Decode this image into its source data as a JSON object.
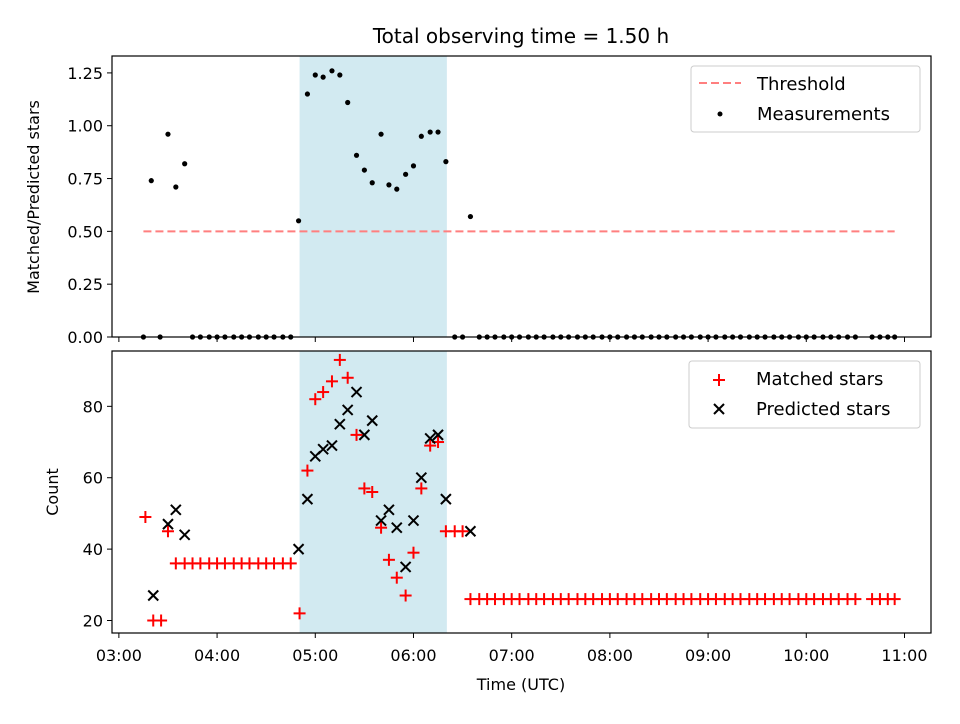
{
  "title": "Total observing time = 1.50 h",
  "colors": {
    "threshold": "#ff7f7f",
    "measurement": "#000000",
    "matched": "#ff0000",
    "predicted": "#000000",
    "span_fill": "#add8e6"
  },
  "top_panel": {
    "ylabel": "Matched/Predicted stars",
    "legend": {
      "threshold": "Threshold",
      "measurements": "Measurements"
    }
  },
  "bottom_panel": {
    "ylabel": "Count",
    "xlabel": "Time (UTC)",
    "legend": {
      "matched": "Matched stars",
      "predicted": "Predicted stars"
    }
  },
  "chart_data": [
    {
      "type": "scatter",
      "panel": "top",
      "title": "Total observing time = 1.50 h",
      "xlabel": "",
      "ylabel": "Matched/Predicted stars",
      "ylim": [
        0,
        1.33
      ],
      "yticks": [
        0.0,
        0.25,
        0.5,
        0.75,
        1.0,
        1.25
      ],
      "ytick_labels": [
        "0.00",
        "0.25",
        "0.50",
        "0.75",
        "1.00",
        "1.25"
      ],
      "x_unit": "hours UTC",
      "xlim": [
        2.93,
        11.27
      ],
      "legend_position": "top-right",
      "shaded_span": [
        4.84,
        6.34
      ],
      "threshold": {
        "name": "Threshold",
        "y": 0.5,
        "x": [
          3.25,
          10.9
        ],
        "style": "dashed"
      },
      "series": [
        {
          "name": "Measurements",
          "x": [
            3.25,
            3.33,
            3.42,
            3.5,
            3.58,
            3.67,
            3.75,
            3.83,
            3.92,
            4.0,
            4.08,
            4.17,
            4.25,
            4.33,
            4.42,
            4.5,
            4.58,
            4.67,
            4.75,
            4.83,
            4.92,
            5.0,
            5.08,
            5.17,
            5.25,
            5.33,
            5.42,
            5.5,
            5.58,
            5.67,
            5.75,
            5.83,
            5.92,
            6.0,
            6.08,
            6.17,
            6.25,
            6.33,
            6.42,
            6.5,
            6.58,
            6.67,
            6.75,
            6.83,
            6.92,
            7.0,
            7.08,
            7.17,
            7.25,
            7.33,
            7.42,
            7.5,
            7.58,
            7.67,
            7.75,
            7.83,
            7.92,
            8.0,
            8.08,
            8.17,
            8.25,
            8.33,
            8.42,
            8.5,
            8.58,
            8.67,
            8.75,
            8.83,
            8.92,
            9.0,
            9.08,
            9.17,
            9.25,
            9.33,
            9.42,
            9.5,
            9.58,
            9.67,
            9.75,
            9.83,
            9.92,
            10.0,
            10.08,
            10.17,
            10.25,
            10.33,
            10.42,
            10.5,
            10.67,
            10.75,
            10.83,
            10.9
          ],
          "y": [
            0.0,
            0.74,
            0.0,
            0.96,
            0.71,
            0.82,
            0.0,
            0.0,
            0.0,
            0.0,
            0.0,
            0.0,
            0.0,
            0.0,
            0.0,
            0.0,
            0.0,
            0.0,
            0.0,
            0.55,
            1.15,
            1.24,
            1.23,
            1.26,
            1.24,
            1.11,
            0.86,
            0.79,
            0.73,
            0.96,
            0.72,
            0.7,
            0.77,
            0.81,
            0.95,
            0.97,
            0.97,
            0.83,
            0.0,
            0.0,
            0.57,
            0.0,
            0.0,
            0.0,
            0.0,
            0.0,
            0.0,
            0.0,
            0.0,
            0.0,
            0.0,
            0.0,
            0.0,
            0.0,
            0.0,
            0.0,
            0.0,
            0.0,
            0.0,
            0.0,
            0.0,
            0.0,
            0.0,
            0.0,
            0.0,
            0.0,
            0.0,
            0.0,
            0.0,
            0.0,
            0.0,
            0.0,
            0.0,
            0.0,
            0.0,
            0.0,
            0.0,
            0.0,
            0.0,
            0.0,
            0.0,
            0.0,
            0.0,
            0.0,
            0.0,
            0.0,
            0.0,
            0.0,
            0.0,
            0.0,
            0.0,
            0.0
          ]
        }
      ]
    },
    {
      "type": "scatter",
      "panel": "bottom",
      "xlabel": "Time (UTC)",
      "ylabel": "Count",
      "ylim": [
        16.5,
        95.5
      ],
      "yticks": [
        20,
        40,
        60,
        80
      ],
      "ytick_labels": [
        "20",
        "40",
        "60",
        "80"
      ],
      "x_unit": "hours UTC",
      "xlim": [
        2.93,
        11.27
      ],
      "xticks": [
        3,
        4,
        5,
        6,
        7,
        8,
        9,
        10,
        11
      ],
      "xtick_labels": [
        "03:00",
        "04:00",
        "05:00",
        "06:00",
        "07:00",
        "08:00",
        "09:00",
        "10:00",
        "11:00"
      ],
      "legend_position": "top-right",
      "shaded_span": [
        4.84,
        6.34
      ],
      "series": [
        {
          "name": "Matched stars",
          "marker": "plus",
          "x": [
            3.27,
            3.35,
            3.43,
            3.5,
            3.58,
            3.67,
            3.75,
            3.83,
            3.92,
            4.0,
            4.08,
            4.17,
            4.25,
            4.33,
            4.42,
            4.5,
            4.58,
            4.67,
            4.75,
            4.84,
            4.92,
            5.0,
            5.08,
            5.17,
            5.25,
            5.33,
            5.42,
            5.5,
            5.58,
            5.67,
            5.75,
            5.83,
            5.92,
            6.0,
            6.08,
            6.17,
            6.25,
            6.33,
            6.42,
            6.5,
            6.58,
            6.67,
            6.75,
            6.83,
            6.92,
            7.0,
            7.08,
            7.17,
            7.25,
            7.33,
            7.42,
            7.5,
            7.58,
            7.67,
            7.75,
            7.83,
            7.92,
            8.0,
            8.08,
            8.17,
            8.25,
            8.33,
            8.42,
            8.5,
            8.58,
            8.67,
            8.75,
            8.83,
            8.92,
            9.0,
            9.08,
            9.17,
            9.25,
            9.33,
            9.42,
            9.5,
            9.58,
            9.67,
            9.75,
            9.83,
            9.92,
            10.0,
            10.08,
            10.17,
            10.25,
            10.33,
            10.42,
            10.5,
            10.67,
            10.75,
            10.83,
            10.9
          ],
          "y": [
            49,
            20,
            20,
            45,
            36,
            36,
            36,
            36,
            36,
            36,
            36,
            36,
            36,
            36,
            36,
            36,
            36,
            36,
            36,
            22,
            62,
            82,
            84,
            87,
            93,
            88,
            72,
            57,
            56,
            46,
            37,
            32,
            27,
            39,
            57,
            69,
            70,
            45,
            45,
            45,
            26,
            26,
            26,
            26,
            26,
            26,
            26,
            26,
            26,
            26,
            26,
            26,
            26,
            26,
            26,
            26,
            26,
            26,
            26,
            26,
            26,
            26,
            26,
            26,
            26,
            26,
            26,
            26,
            26,
            26,
            26,
            26,
            26,
            26,
            26,
            26,
            26,
            26,
            26,
            26,
            26,
            26,
            26,
            26,
            26,
            26,
            26,
            26,
            26,
            26,
            26,
            26
          ]
        },
        {
          "name": "Predicted stars",
          "marker": "x",
          "x": [
            3.35,
            3.5,
            3.58,
            3.67,
            4.83,
            4.92,
            5.0,
            5.08,
            5.17,
            5.25,
            5.33,
            5.42,
            5.5,
            5.58,
            5.67,
            5.75,
            5.83,
            5.92,
            6.0,
            6.08,
            6.17,
            6.25,
            6.33,
            6.58
          ],
          "y": [
            27,
            47,
            51,
            44,
            40,
            54,
            66,
            68,
            69,
            75,
            79,
            84,
            72,
            76,
            48,
            51,
            46,
            35,
            48,
            60,
            71,
            72,
            54,
            45
          ]
        }
      ]
    }
  ]
}
